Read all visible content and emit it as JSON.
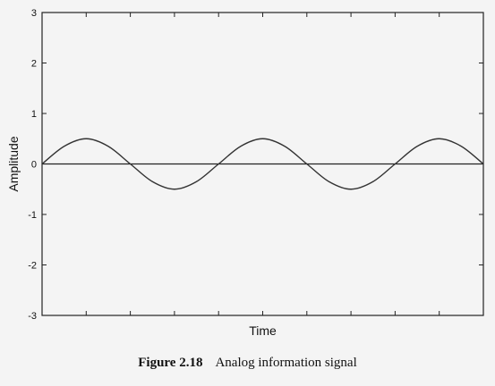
{
  "caption": {
    "label": "Figure 2.18",
    "text": "Analog information signal"
  },
  "chart_data": {
    "type": "line",
    "title": "",
    "xlabel": "Time",
    "ylabel": "Amplitude",
    "ylim": [
      -3,
      3
    ],
    "yticks": [
      "3",
      "2",
      "1",
      "0",
      "-1",
      "-2",
      "-3"
    ],
    "xticks_labeled": false,
    "grid": false,
    "legend": "none",
    "series": [
      {
        "color": "#333333",
        "x": [
          0,
          0.05,
          0.1,
          0.15,
          0.2,
          0.25,
          0.3,
          0.35,
          0.4,
          0.45,
          0.5,
          0.55,
          0.6,
          0.65,
          0.7,
          0.75,
          0.8,
          0.85,
          0.9,
          0.95,
          1.0
        ],
        "values": [
          0,
          0.35,
          0.5,
          0.35,
          0,
          -0.35,
          -0.5,
          -0.35,
          0,
          0.35,
          0.5,
          0.35,
          0,
          -0.35,
          -0.5,
          -0.35,
          0,
          0.35,
          0.5,
          0.35,
          0
        ]
      }
    ],
    "reference_line": {
      "y": 0
    }
  }
}
